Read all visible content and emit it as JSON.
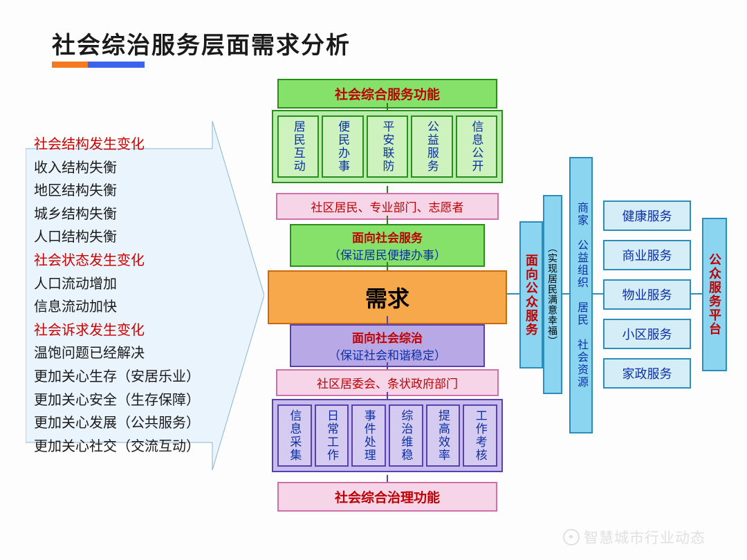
{
  "title": "社会综治服务层面需求分析",
  "accent_colors": {
    "orange": "#f47920",
    "blue": "#3a63ef"
  },
  "left_list": [
    {
      "text": "社会结构发生变化",
      "red": true
    },
    {
      "text": "收入结构失衡",
      "red": false
    },
    {
      "text": "地区结构失衡",
      "red": false
    },
    {
      "text": "城乡结构失衡",
      "red": false
    },
    {
      "text": "人口结构失衡",
      "red": false
    },
    {
      "text": "社会状态发生变化",
      "red": true
    },
    {
      "text": "人口流动增加",
      "red": false
    },
    {
      "text": "信息流动加快",
      "red": false
    },
    {
      "text": "社会诉求发生变化",
      "red": true
    },
    {
      "text": "温饱问题已经解决",
      "red": false
    },
    {
      "text": "更加关心生存（安居乐业）",
      "red": false
    },
    {
      "text": "更加关心安全（生存保障）",
      "red": false
    },
    {
      "text": "更加关心发展（公共服务）",
      "red": false
    },
    {
      "text": "更加关心社交（交流互动）",
      "red": false
    }
  ],
  "arrow_style": {
    "fill": "#eaf4fc",
    "stroke": "#8ab5d4",
    "stroke_width": 1
  },
  "center": {
    "top_header": "社会综合服务功能",
    "top_items": [
      "居民互动",
      "便民办事",
      "平安联防",
      "公益服务",
      "信息公开"
    ],
    "top_items_style": {
      "bg": "#cdf2bd",
      "border": "#2a8f1a",
      "text": "#0a2fa8"
    },
    "top_actors": "社区居民、专业部门、志愿者",
    "svc_up": {
      "title": "面向社会服务",
      "sub": "（保证居民便捷办事）"
    },
    "demand": "需求",
    "svc_down": {
      "title": "面向社会综治",
      "sub": "（保证社会和谐稳定）"
    },
    "bottom_actors": "社区居委会、条状政府部门",
    "bottom_items": [
      "信息采集",
      "日常工作",
      "事件处理",
      "综治维稳",
      "提高效率",
      "工作考核"
    ],
    "bottom_items_style": {
      "bg": "#d5cbf0",
      "border": "#5a3fb0",
      "text": "#0a2fa8"
    },
    "bottom_header": "社会综合治理功能"
  },
  "right": {
    "col1_title": "面向公众服务",
    "col1_sub": "（实现居民满意幸福）",
    "col2": "商家　公益组织　居民　社会资源",
    "services": [
      "健康服务",
      "商业服务",
      "物业服务",
      "小区服务",
      "家政服务"
    ],
    "platform": "公众服务平台",
    "box_style": {
      "bg": "#8bd5f0",
      "border": "#2a8dba",
      "list_bg": "#d5edf7"
    }
  },
  "watermark": "智慧城市行业动态"
}
